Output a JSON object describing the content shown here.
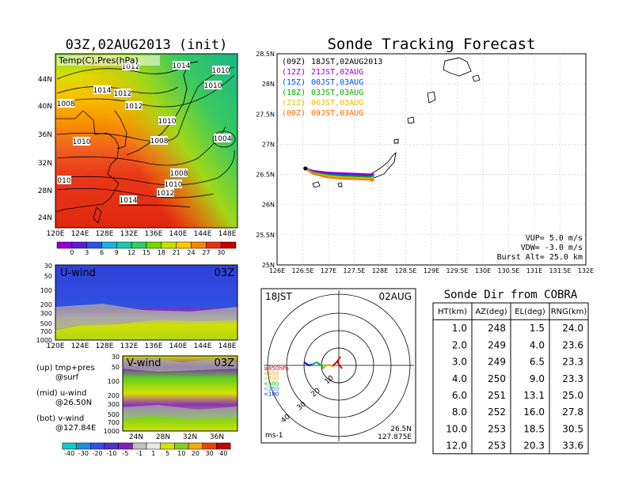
{
  "header": {
    "left_title": "03Z,02AUG2013 (init)",
    "right_title": "Sonde Tracking Forecast"
  },
  "map_panel": {
    "overlay_label": "Temp(C),Pres(hPa)",
    "x_ticks": [
      "120E",
      "124E",
      "128E",
      "132E",
      "136E",
      "140E",
      "144E",
      "148E"
    ],
    "y_ticks": [
      "44N",
      "40N",
      "36N",
      "32N",
      "28N",
      "24N"
    ],
    "pressure_labels": [
      "1012",
      "1014",
      "1010",
      "1010",
      "1014",
      "1012",
      "1008",
      "1012",
      "1010",
      "1008",
      "1004",
      "1008",
      "1010",
      "1012",
      "1014",
      "010",
      "1010",
      "1014"
    ],
    "colorbar_ticks": [
      "0",
      "3",
      "6",
      "9",
      "12",
      "15",
      "18",
      "21",
      "24",
      "27",
      "30"
    ],
    "colorbar_colors": [
      "#9400d3",
      "#5a1bd8",
      "#2a55e8",
      "#1ab0e0",
      "#18c8a8",
      "#2ad060",
      "#70d800",
      "#c8e000",
      "#f8c800",
      "#f88400",
      "#e83010",
      "#c80000"
    ]
  },
  "u_panel": {
    "label": "U-wind",
    "time": "03Z",
    "y_ticks": [
      "30",
      "50",
      "100",
      "200",
      "300",
      "500",
      "700",
      "1000"
    ],
    "x_ticks": [
      "120E",
      "124E",
      "128E",
      "132E",
      "136E",
      "140E",
      "144E",
      "148E"
    ]
  },
  "v_panel": {
    "label": "V-wind",
    "time": "03Z",
    "y_ticks": [
      "30",
      "50",
      "100",
      "200",
      "300",
      "500",
      "700",
      "1000"
    ],
    "x_ticks": [
      "24N",
      "28N",
      "32N",
      "36N"
    ]
  },
  "panel_notes": {
    "up_line1": "(up) tmp+pres",
    "up_line2": "@surf",
    "mid_line1": "(mid) u-wind",
    "mid_line2": "@26.50N",
    "bot_line1": "(bot) v-wind",
    "bot_line2": "@127.84E"
  },
  "wind_colorbar": {
    "ticks": [
      "-40",
      "-30",
      "-20",
      "-10",
      "-5",
      "-1",
      "1",
      "5",
      "10",
      "20",
      "30",
      "40"
    ],
    "colors": [
      "#10c8c8",
      "#1890e0",
      "#3050e8",
      "#5030c8",
      "#8020c0",
      "#c0c0c0",
      "#e8e8e8",
      "#d8e000",
      "#80d020",
      "#f8a800",
      "#f04000",
      "#c00000"
    ]
  },
  "tracking_map": {
    "legend": [
      {
        "run": "(09Z)",
        "valid": "18JST,02AUG2013",
        "color": "#000000"
      },
      {
        "run": "(12Z)",
        "valid": "21JST,02AUG",
        "color": "#a000c8"
      },
      {
        "run": "(15Z)",
        "valid": "00JST,03AUG",
        "color": "#0050ff"
      },
      {
        "run": "(18Z)",
        "valid": "03JST,03AUG",
        "color": "#00b000"
      },
      {
        "run": "(21Z)",
        "valid": "06JST,03AUG",
        "color": "#e8c000"
      },
      {
        "run": "(00Z)",
        "valid": "09JST,03AUG",
        "color": "#ff7000"
      }
    ],
    "x_ticks": [
      "126E",
      "126.5E",
      "127E",
      "127.5E",
      "128E",
      "128.5E",
      "129E",
      "129.5E",
      "130E",
      "130.5E",
      "131E",
      "131.5E",
      "132E"
    ],
    "y_ticks": [
      "28.5N",
      "28N",
      "27.5N",
      "27N",
      "26.5N",
      "26N",
      "25.5N",
      "25N"
    ],
    "params": {
      "vup": "VUP=  5.0  m/s",
      "vdw": "VDW=  -3.0  m/s",
      "burst": "Burst Alt=  25.0  km"
    }
  },
  "polar_plot": {
    "time_label": "18JST",
    "date_label": "02AUG",
    "ring_labels": [
      "10",
      "20",
      "30",
      "40"
    ],
    "location_lat": "26.5N",
    "location_lon": "127.875E",
    "units": "ms-1",
    "pressure_legend": [
      {
        "label": "≥850hPa",
        "color": "#e00000"
      },
      {
        "label": "<850",
        "color": "#f0a000"
      },
      {
        "label": "<700",
        "color": "#d8c000"
      },
      {
        "label": "<500",
        "color": "#00b000"
      },
      {
        "label": "<250",
        "color": "#00a0d0"
      },
      {
        "label": "<100",
        "color": "#0000ff"
      }
    ]
  },
  "sonde_table": {
    "title": "Sonde Dir from COBRA",
    "headers": [
      "HT(km)",
      "AZ(deg)",
      "EL(deg)",
      "RNG(km)"
    ],
    "rows": [
      [
        "1.0",
        "248",
        "1.5",
        "24.0"
      ],
      [
        "2.0",
        "249",
        "4.0",
        "23.6"
      ],
      [
        "3.0",
        "249",
        "6.5",
        "23.3"
      ],
      [
        "4.0",
        "250",
        "9.0",
        "23.3"
      ],
      [
        "6.0",
        "251",
        "13.1",
        "25.0"
      ],
      [
        "8.0",
        "252",
        "16.0",
        "27.8"
      ],
      [
        "10.0",
        "253",
        "18.5",
        "30.5"
      ],
      [
        "12.0",
        "253",
        "20.3",
        "33.6"
      ]
    ]
  },
  "chart_data": [
    {
      "type": "table",
      "title": "Sonde Dir from COBRA",
      "columns": [
        "HT(km)",
        "AZ(deg)",
        "EL(deg)",
        "RNG(km)"
      ],
      "rows": [
        [
          1.0,
          248,
          1.5,
          24.0
        ],
        [
          2.0,
          249,
          4.0,
          23.6
        ],
        [
          3.0,
          249,
          6.5,
          23.3
        ],
        [
          4.0,
          250,
          9.0,
          23.3
        ],
        [
          6.0,
          251,
          13.1,
          25.0
        ],
        [
          8.0,
          252,
          16.0,
          27.8
        ],
        [
          10.0,
          253,
          18.5,
          30.5
        ],
        [
          12.0,
          253,
          20.3,
          33.6
        ]
      ]
    },
    {
      "type": "line",
      "title": "Sonde Tracking Forecast",
      "xlim": [
        126,
        132
      ],
      "ylim": [
        25,
        28.5
      ],
      "launch_point": {
        "x": 126.55,
        "y": 26.6
      },
      "series": [
        {
          "name": "(09Z) 18JST,02AUG2013",
          "color": "#000000",
          "x": [
            126.55,
            126.7,
            127.0,
            127.3,
            127.6,
            127.85
          ],
          "y": [
            26.6,
            26.55,
            26.52,
            26.51,
            26.5,
            26.49
          ]
        },
        {
          "name": "(12Z) 21JST,02AUG",
          "color": "#a000c8",
          "x": [
            126.55,
            126.7,
            127.0,
            127.3,
            127.6,
            127.85
          ],
          "y": [
            26.6,
            26.56,
            26.53,
            26.52,
            26.51,
            26.5
          ]
        },
        {
          "name": "(15Z) 00JST,03AUG",
          "color": "#0050ff",
          "x": [
            126.55,
            126.7,
            127.0,
            127.3,
            127.6,
            127.85
          ],
          "y": [
            26.6,
            26.54,
            26.5,
            26.49,
            26.48,
            26.47
          ]
        },
        {
          "name": "(18Z) 03JST,03AUG",
          "color": "#00b000",
          "x": [
            126.55,
            126.7,
            127.0,
            127.3,
            127.6,
            127.85
          ],
          "y": [
            26.6,
            26.53,
            26.49,
            26.47,
            26.46,
            26.45
          ]
        },
        {
          "name": "(21Z) 06JST,03AUG",
          "color": "#e8c000",
          "x": [
            126.55,
            126.7,
            127.0,
            127.3,
            127.6,
            127.85
          ],
          "y": [
            26.6,
            26.52,
            26.47,
            26.45,
            26.44,
            26.43
          ]
        },
        {
          "name": "(00Z) 09JST,03AUG",
          "color": "#ff7000",
          "x": [
            126.55,
            126.7,
            127.0,
            127.3,
            127.6,
            127.85
          ],
          "y": [
            26.6,
            26.51,
            26.45,
            26.43,
            26.42,
            26.41
          ]
        }
      ]
    }
  ]
}
